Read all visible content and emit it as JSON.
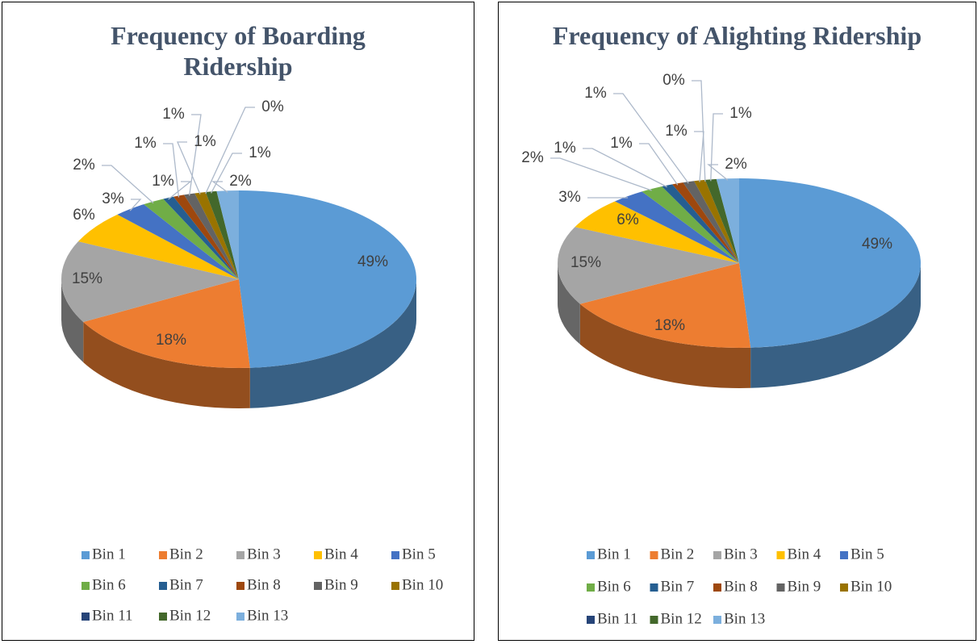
{
  "chart_data": [
    {
      "type": "pie",
      "title": "Frequency of Boarding Ridership",
      "categories": [
        "Bin 1",
        "Bin 2",
        "Bin 3",
        "Bin 4",
        "Bin 5",
        "Bin 6",
        "Bin 7",
        "Bin 8",
        "Bin 9",
        "Bin 10",
        "Bin 11",
        "Bin 12",
        "Bin 13"
      ],
      "values": [
        49,
        18,
        15,
        6,
        3,
        2,
        1,
        1,
        1,
        1,
        0,
        1,
        2
      ],
      "value_labels": [
        "49%",
        "18%",
        "15%",
        "6%",
        "3%",
        "2%",
        "1%",
        "1%",
        "1%",
        "1%",
        "0%",
        "1%",
        "2%"
      ],
      "colors": [
        "#5b9bd5",
        "#ed7d31",
        "#a5a5a5",
        "#ffc000",
        "#4472c4",
        "#70ad47",
        "#255e91",
        "#9e480e",
        "#636363",
        "#997300",
        "#264478",
        "#43682b",
        "#7cafdd"
      ]
    },
    {
      "type": "pie",
      "title": "Frequency of Alighting Ridership",
      "categories": [
        "Bin 1",
        "Bin 2",
        "Bin 3",
        "Bin 4",
        "Bin 5",
        "Bin 6",
        "Bin 7",
        "Bin 8",
        "Bin 9",
        "Bin 10",
        "Bin 11",
        "Bin 12",
        "Bin 13"
      ],
      "values": [
        49,
        18,
        15,
        6,
        3,
        2,
        1,
        1,
        1,
        1,
        0,
        1,
        2
      ],
      "value_labels": [
        "49%",
        "18%",
        "15%",
        "6%",
        "3%",
        "2%",
        "1%",
        "1%",
        "1%",
        "1%",
        "0%",
        "1%",
        "2%"
      ],
      "colors": [
        "#5b9bd5",
        "#ed7d31",
        "#a5a5a5",
        "#ffc000",
        "#4472c4",
        "#70ad47",
        "#255e91",
        "#9e480e",
        "#636363",
        "#997300",
        "#264478",
        "#43682b",
        "#7cafdd"
      ]
    }
  ]
}
